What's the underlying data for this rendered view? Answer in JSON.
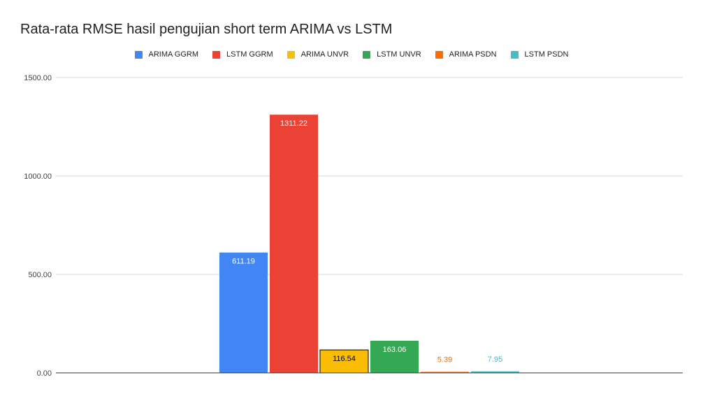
{
  "chart_data": {
    "type": "bar",
    "title": "Rata-rata RMSE hasil pengujian short term ARIMA vs LSTM",
    "xlabel": "",
    "ylabel": "",
    "ylim": [
      0,
      1500
    ],
    "yticks": [
      "0.00",
      "500.00",
      "1000.00",
      "1500.00"
    ],
    "ytick_values": [
      0,
      500,
      1000,
      1500
    ],
    "grid": true,
    "legend_position": "top",
    "series": [
      {
        "name": "ARIMA GGRM",
        "values": [
          611.19
        ],
        "label": "611.19",
        "color": "#4285F4",
        "label_color": "#ffffff"
      },
      {
        "name": "LSTM GGRM",
        "values": [
          1311.22
        ],
        "label": "1311.22",
        "color": "#EA4335",
        "label_color": "#ffffff"
      },
      {
        "name": "ARIMA UNVR",
        "values": [
          116.54
        ],
        "label": "116.54",
        "color": "#FBBC04",
        "label_color": "#000000"
      },
      {
        "name": "LSTM UNVR",
        "values": [
          163.06
        ],
        "label": "163.06",
        "color": "#34A853",
        "label_color": "#ffffff"
      },
      {
        "name": "ARIMA PSDN",
        "values": [
          5.39
        ],
        "label": "5.39",
        "color": "#FF6D01",
        "label_color": "#FF6D01"
      },
      {
        "name": "LSTM PSDN",
        "values": [
          7.95
        ],
        "label": "7.95",
        "color": "#46BDC6",
        "label_color": "#46BDC6"
      }
    ]
  }
}
